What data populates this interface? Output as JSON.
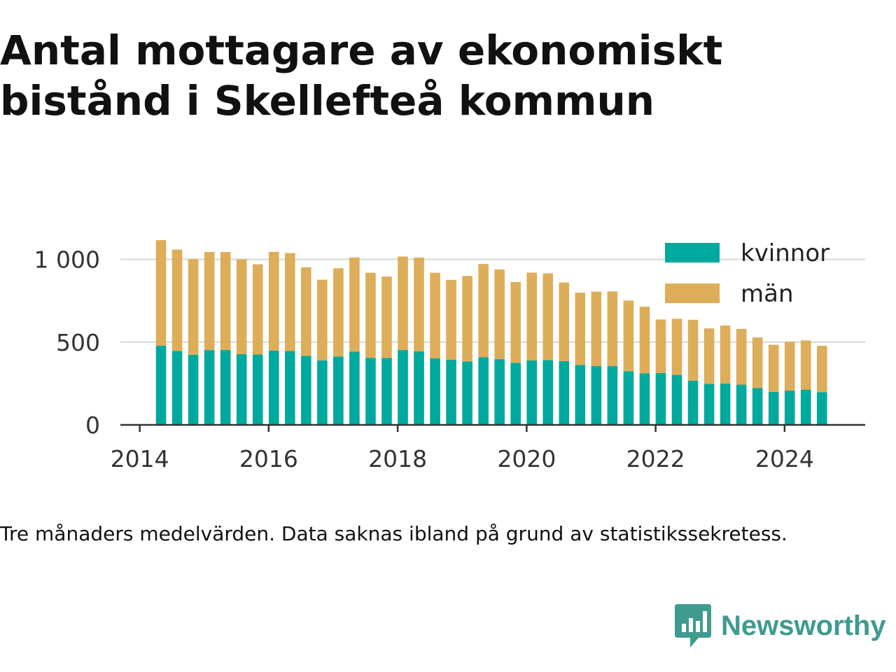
{
  "title": "Antal mottagare av ekonomiskt bistånd i Skellefteå kommun",
  "footnote": "Tre månaders medelvärden. Data saknas ibland på grund av statistikssekretess.",
  "brand": {
    "name": "Newsworthy",
    "icon": "bar-chart-speech-bubble-icon",
    "color": "#3f9a8f"
  },
  "colors": {
    "kvinnor": "#00a99d",
    "man": "#ddad5a",
    "grid": "#dddddd",
    "axis": "#333333"
  },
  "chart_data": {
    "type": "bar",
    "stacked": true,
    "title": "Antal mottagare av ekonomiskt bistånd i Skellefteå kommun",
    "xlabel": "",
    "ylabel": "",
    "ylim": [
      0,
      1120
    ],
    "xlim": [
      2013.7,
      2025.25
    ],
    "x_ticks": [
      2014,
      2016,
      2018,
      2020,
      2022,
      2024
    ],
    "y_ticks": [
      {
        "value": 0,
        "label": "0"
      },
      {
        "value": 500,
        "label": "500"
      },
      {
        "value": 1000,
        "label": "1 000"
      }
    ],
    "grid": true,
    "legend_position": "top-right",
    "x": [
      2014.33,
      2014.58,
      2014.83,
      2015.08,
      2015.33,
      2015.58,
      2015.83,
      2016.08,
      2016.33,
      2016.58,
      2016.83,
      2017.08,
      2017.33,
      2017.58,
      2017.83,
      2018.08,
      2018.33,
      2018.58,
      2018.83,
      2019.08,
      2019.33,
      2019.58,
      2019.83,
      2020.08,
      2020.33,
      2020.58,
      2020.83,
      2021.08,
      2021.33,
      2021.58,
      2021.83,
      2022.08,
      2022.33,
      2022.58,
      2022.83,
      2023.08,
      2023.33,
      2023.58,
      2023.83,
      2024.08,
      2024.33,
      2024.58
    ],
    "series": [
      {
        "name": "kvinnor",
        "values": [
          478,
          447,
          424,
          452,
          453,
          427,
          425,
          449,
          446,
          417,
          390,
          413,
          443,
          405,
          404,
          452,
          444,
          402,
          393,
          383,
          409,
          397,
          375,
          389,
          392,
          385,
          362,
          355,
          355,
          324,
          311,
          313,
          302,
          267,
          248,
          250,
          243,
          222,
          199,
          207,
          213,
          198
        ]
      },
      {
        "name": "män",
        "values": [
          638,
          612,
          578,
          592,
          591,
          573,
          545,
          596,
          592,
          535,
          487,
          533,
          568,
          514,
          492,
          565,
          567,
          517,
          483,
          517,
          563,
          542,
          488,
          531,
          523,
          475,
          437,
          450,
          451,
          427,
          403,
          324,
          339,
          368,
          335,
          350,
          337,
          306,
          285,
          295,
          297,
          280
        ]
      }
    ]
  }
}
